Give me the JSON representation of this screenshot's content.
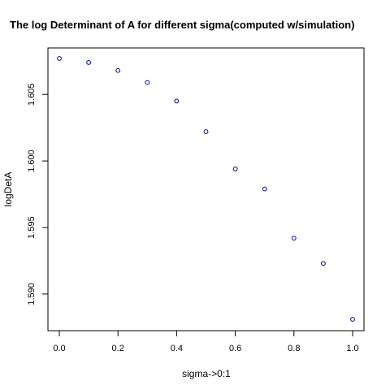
{
  "chart_data": {
    "type": "scatter",
    "title": "The log Determinant of A for different sigma(computed w/simulation)",
    "xlabel": "sigma->0:1",
    "ylabel": "logDetA",
    "xlim": [
      0.0,
      1.0
    ],
    "ylim": [
      1.5881,
      1.6077
    ],
    "x_ticks": [
      0.0,
      0.2,
      0.4,
      0.6,
      0.8,
      1.0
    ],
    "x_tick_labels": [
      "0.0",
      "0.2",
      "0.4",
      "0.6",
      "0.8",
      "1.0"
    ],
    "y_ticks": [
      1.59,
      1.595,
      1.6,
      1.605
    ],
    "y_tick_labels": [
      "1.590",
      "1.595",
      "1.600",
      "1.605"
    ],
    "grid": false,
    "series": [
      {
        "name": "logDetA",
        "color": "#00008B",
        "marker": "open-circle",
        "x": [
          0.0,
          0.1,
          0.2,
          0.3,
          0.4,
          0.5,
          0.6,
          0.7,
          0.8,
          0.9,
          1.0
        ],
        "y": [
          1.6077,
          1.6074,
          1.6068,
          1.6059,
          1.6045,
          1.6022,
          1.5994,
          1.5979,
          1.5942,
          1.5923,
          1.5881
        ]
      }
    ]
  }
}
